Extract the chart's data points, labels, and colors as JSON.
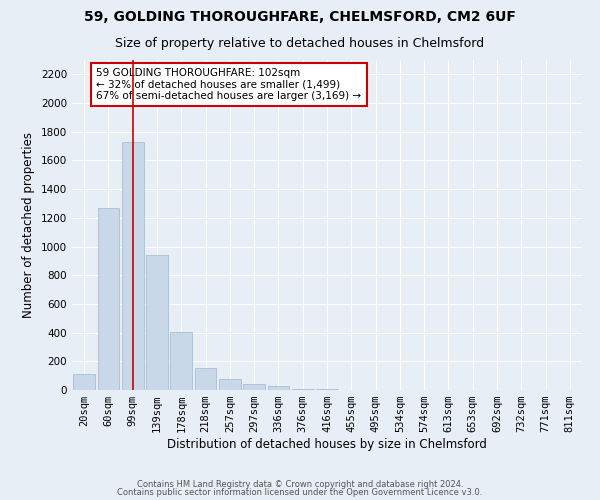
{
  "title": "59, GOLDING THOROUGHFARE, CHELMSFORD, CM2 6UF",
  "subtitle": "Size of property relative to detached houses in Chelmsford",
  "xlabel": "Distribution of detached houses by size in Chelmsford",
  "ylabel": "Number of detached properties",
  "bar_color": "#c8d8e8",
  "bar_edgecolor": "#a0b8cc",
  "vline_color": "#cc0000",
  "vline_x": 2,
  "annotation_text": "59 GOLDING THOROUGHFARE: 102sqm\n← 32% of detached houses are smaller (1,499)\n67% of semi-detached houses are larger (3,169) →",
  "annotation_box_color": "#cc0000",
  "categories": [
    "20sqm",
    "60sqm",
    "99sqm",
    "139sqm",
    "178sqm",
    "218sqm",
    "257sqm",
    "297sqm",
    "336sqm",
    "376sqm",
    "416sqm",
    "455sqm",
    "495sqm",
    "534sqm",
    "574sqm",
    "613sqm",
    "653sqm",
    "692sqm",
    "732sqm",
    "771sqm",
    "811sqm"
  ],
  "values": [
    110,
    1270,
    1730,
    940,
    405,
    150,
    75,
    45,
    25,
    10,
    5,
    2,
    1,
    0,
    0,
    0,
    0,
    0,
    0,
    0,
    0
  ],
  "ylim": [
    0,
    2300
  ],
  "yticks": [
    0,
    200,
    400,
    600,
    800,
    1000,
    1200,
    1400,
    1600,
    1800,
    2000,
    2200
  ],
  "background_color": "#e8eef5",
  "plot_bg_color": "#e8eef5",
  "grid_color": "#ffffff",
  "footer_line1": "Contains HM Land Registry data © Crown copyright and database right 2024.",
  "footer_line2": "Contains public sector information licensed under the Open Government Licence v3.0.",
  "title_fontsize": 10,
  "subtitle_fontsize": 9,
  "xlabel_fontsize": 8.5,
  "ylabel_fontsize": 8.5,
  "tick_fontsize": 7.5,
  "footer_fontsize": 6.0
}
